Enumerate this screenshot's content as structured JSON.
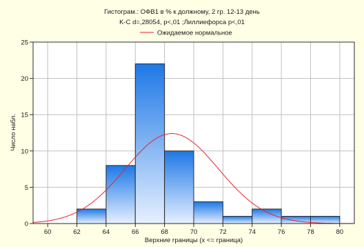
{
  "chart_data": {
    "type": "bar",
    "title_lines": [
      "Гистограм.: ОФВ1 в % к должному, 2 гр. 12-13 день",
      "K-C d=,28054, p<,01 ;Лиллиефорса p<,01"
    ],
    "legend": [
      {
        "label": "Ожидаемое нормальное",
        "color": "#e8202a",
        "kind": "line"
      }
    ],
    "xlabel": "Верхние границы (x <= граница)",
    "ylabel": "Число набл.",
    "xlim": [
      59,
      81
    ],
    "ylim": [
      0,
      25
    ],
    "x_ticks": [
      "60",
      "62",
      "64",
      "66",
      "68",
      "70",
      "72",
      "74",
      "76",
      "78",
      "80"
    ],
    "y_ticks": [
      "0",
      "5",
      "10",
      "15",
      "20",
      "25"
    ],
    "bins": [
      {
        "from": 62,
        "to": 64,
        "count": 2
      },
      {
        "from": 64,
        "to": 66,
        "count": 8
      },
      {
        "from": 66,
        "to": 68,
        "count": 22
      },
      {
        "from": 68,
        "to": 70,
        "count": 10
      },
      {
        "from": 70,
        "to": 72,
        "count": 3
      },
      {
        "from": 72,
        "to": 74,
        "count": 1
      },
      {
        "from": 74,
        "to": 76,
        "count": 2
      },
      {
        "from": 76,
        "to": 78,
        "count": 1
      },
      {
        "from": 78,
        "to": 80,
        "count": 1
      }
    ],
    "normal_curve": {
      "name": "Ожидаемое нормальное",
      "mean": 68.5,
      "sd": 3.2,
      "peak": 12.4
    },
    "colors": {
      "bar_top": "#1e78e6",
      "bar_bottom": "#e6f0ff",
      "bar_border": "#2a2a2a",
      "curve": "#e8202a",
      "grid": "#bfbfbf",
      "plot_bg": "#ffffff",
      "page_bg": "#ffffe6"
    },
    "grid": true
  }
}
